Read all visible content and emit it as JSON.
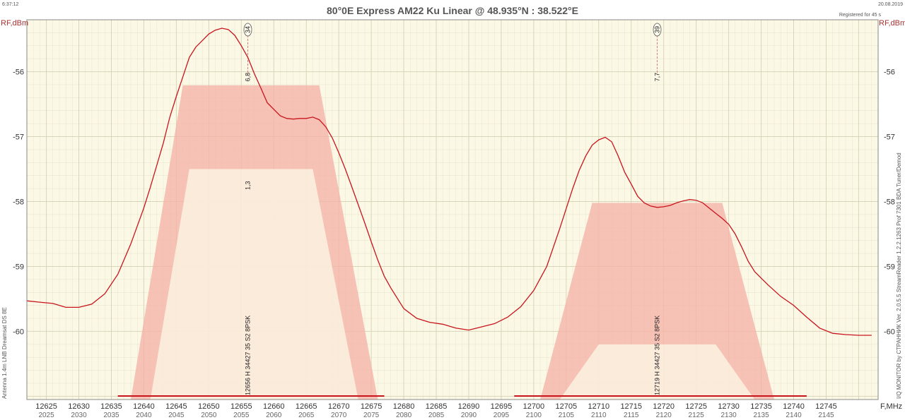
{
  "header": {
    "time": "6:37:12",
    "date": "20.08.2019",
    "registered": "Registered for 45 s",
    "title": "80°0E Express AM22 Ku Linear  @  48.935°N : 38.522°E"
  },
  "side_text": {
    "left": "Antenna 1.4m  LNB Dreamsat DS 8E",
    "right": "I/Q MONITOR  by  СТРАННИК     Ver. 2.0.5.5   StreamReader 1.2.2.1263     Prof 7301 BDA Tuner/Demod"
  },
  "colors": {
    "background": "#fcf8e6",
    "grid": "#d8d6b8",
    "trace": "#c8141c",
    "band": "#f6b0a6",
    "axis_label": "#a33333"
  },
  "chart_data": {
    "type": "line",
    "xlabel": "F,MHz",
    "ylabel_left": "RF,dBm",
    "ylabel_right": "RF,dBm",
    "xlim": [
      12622,
      12753
    ],
    "ylim": [
      -61.05,
      -55.2
    ],
    "x_ticks": [
      12625,
      12630,
      12635,
      12640,
      12645,
      12650,
      12655,
      12660,
      12665,
      12670,
      12675,
      12680,
      12685,
      12690,
      12695,
      12700,
      12705,
      12710,
      12715,
      12720,
      12725,
      12730,
      12735,
      12740,
      12745
    ],
    "x_ticks_if": [
      "2025",
      "2030",
      "2035",
      "2040",
      "2045",
      "2050",
      "2055",
      "2060",
      "2065",
      "2070",
      "2075",
      "2080",
      "2085",
      "2090",
      "2095",
      "2100",
      "2105",
      "2110",
      "2115",
      "2120",
      "2125",
      "2130",
      "2135",
      "2140",
      "2145"
    ],
    "y_ticks": [
      -56,
      -57,
      -58,
      -59,
      -60
    ],
    "grid": true,
    "series": [
      {
        "x": [
          12622,
          12624,
          12626,
          12628,
          12630,
          12632,
          12634,
          12636,
          12638,
          12640,
          12641,
          12642,
          12643,
          12644,
          12645,
          12646,
          12647,
          12648,
          12649,
          12650,
          12651,
          12652,
          12653,
          12654,
          12655,
          12656,
          12657,
          12658,
          12659,
          12660,
          12661,
          12662,
          12663,
          12664,
          12665,
          12666,
          12667,
          12668,
          12669,
          12670,
          12671,
          12672,
          12673,
          12674,
          12675,
          12676,
          12677,
          12678,
          12680,
          12682,
          12684,
          12686,
          12688,
          12690,
          12692,
          12694,
          12696,
          12698,
          12700,
          12702,
          12704,
          12706,
          12707,
          12708,
          12709,
          12710,
          12711,
          12712,
          12713,
          12714,
          12715,
          12716,
          12717,
          12718,
          12719,
          12720,
          12721,
          12722,
          12723,
          12724,
          12725,
          12726,
          12727,
          12728,
          12729,
          12730,
          12731,
          12732,
          12733,
          12734,
          12736,
          12738,
          12740,
          12742,
          12744,
          12746,
          12748,
          12750,
          12752
        ],
        "y": [
          -59.53,
          -59.55,
          -59.57,
          -59.63,
          -59.63,
          -59.58,
          -59.42,
          -59.12,
          -58.65,
          -58.1,
          -57.78,
          -57.44,
          -57.1,
          -56.7,
          -56.38,
          -56.08,
          -55.78,
          -55.62,
          -55.52,
          -55.42,
          -55.36,
          -55.33,
          -55.35,
          -55.44,
          -55.6,
          -55.78,
          -56.03,
          -56.25,
          -56.48,
          -56.58,
          -56.68,
          -56.72,
          -56.73,
          -56.72,
          -56.72,
          -56.7,
          -56.74,
          -56.85,
          -57.02,
          -57.25,
          -57.5,
          -57.77,
          -58.05,
          -58.33,
          -58.62,
          -58.9,
          -59.15,
          -59.33,
          -59.65,
          -59.8,
          -59.86,
          -59.89,
          -59.95,
          -59.98,
          -59.93,
          -59.88,
          -59.78,
          -59.62,
          -59.37,
          -59.0,
          -58.42,
          -57.8,
          -57.52,
          -57.3,
          -57.13,
          -57.05,
          -57.01,
          -57.08,
          -57.3,
          -57.55,
          -57.73,
          -57.92,
          -58.02,
          -58.07,
          -58.09,
          -58.08,
          -58.06,
          -58.02,
          -57.99,
          -57.97,
          -57.98,
          -58.02,
          -58.1,
          -58.18,
          -58.26,
          -58.35,
          -58.5,
          -58.7,
          -58.92,
          -59.08,
          -59.28,
          -59.46,
          -59.6,
          -59.78,
          -59.95,
          -60.03,
          -60.05,
          -60.06,
          -60.06
        ]
      }
    ],
    "carriers": [
      {
        "freq": 12656,
        "marker_id": "34",
        "label": "12656 H 34427 35 S2  8PSK",
        "value_top": "6,8",
        "value_bottom": "1,3",
        "band_top": -56.21,
        "band_bottom": -57.5,
        "band_lo": 12638,
        "band_hi": 12676,
        "flat_lo": 12646,
        "flat_hi": 12667,
        "bar_lo": 12636,
        "bar_hi": 12677
      },
      {
        "freq": 12719,
        "marker_id": "39",
        "label": "12719 H 34427 35 S2  8PSK",
        "value_top": "7,7",
        "band_top": -58.02,
        "band_bottom": -60.2,
        "band_lo": 12701,
        "band_hi": 12737,
        "flat_lo": 12709,
        "flat_hi": 12729,
        "bar_lo": 12697,
        "bar_hi": 12742
      }
    ]
  }
}
